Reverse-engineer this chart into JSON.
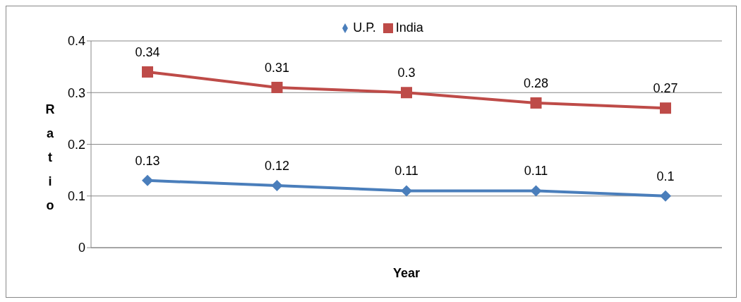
{
  "chart_data": {
    "type": "line",
    "xlabel": "Year",
    "ylabel": "Ratio",
    "categories": [
      null,
      null,
      null,
      null,
      null
    ],
    "series": [
      {
        "name": "U.P.",
        "color": "#4a7ebb",
        "values": [
          0.13,
          0.12,
          0.11,
          0.11,
          0.1
        ],
        "marker": "diamond"
      },
      {
        "name": "India",
        "color": "#be4b48",
        "values": [
          0.34,
          0.31,
          0.3,
          0.28,
          0.27
        ],
        "marker": "square"
      }
    ],
    "ylim": [
      0,
      0.4
    ],
    "yticks": [
      0,
      0.1,
      0.2,
      0.3,
      0.4
    ],
    "grid": "y",
    "legend": "top",
    "data_labels": true
  }
}
